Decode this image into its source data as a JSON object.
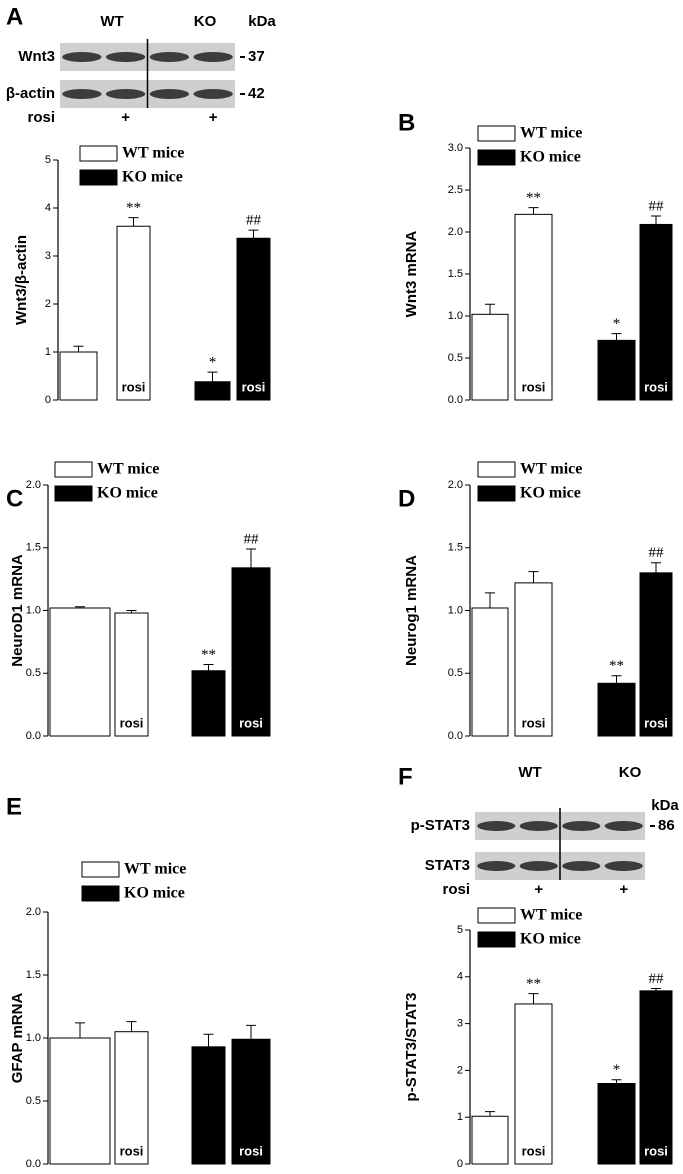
{
  "chart_data": [
    {
      "type": "bar",
      "panel": "A",
      "ylabel": "Wnt3/β-actin",
      "ylim": [
        0,
        5
      ],
      "yticks": [
        0,
        1,
        2,
        3,
        4,
        5
      ],
      "blot": {
        "groups": [
          "WT",
          "KO"
        ],
        "unit": "kDa",
        "rows": [
          {
            "name": "Wnt3",
            "kda": 37
          },
          {
            "name": "β-actin",
            "kda": 42
          }
        ],
        "treatment": "rosi",
        "marks": [
          null,
          "+",
          null,
          "+"
        ]
      },
      "series": [
        {
          "name": "WT mice",
          "color": "#ffffff",
          "values": [
            1.0,
            3.62
          ],
          "errors": [
            0.12,
            0.18
          ],
          "bar_labels": [
            null,
            "rosi"
          ],
          "annotations": [
            null,
            "**"
          ]
        },
        {
          "name": "KO mice",
          "color": "#000000",
          "values": [
            0.38,
            3.37
          ],
          "errors": [
            0.2,
            0.17
          ],
          "bar_labels": [
            null,
            "rosi"
          ],
          "annotations": [
            "*",
            "##"
          ]
        }
      ]
    },
    {
      "type": "bar",
      "panel": "B",
      "ylabel": "Wnt3 mRNA",
      "ylim": [
        0,
        3
      ],
      "yticks": [
        {
          "value": 0,
          "label": "0.0"
        },
        {
          "value": 0.5,
          "label": "0.5"
        },
        {
          "value": 1,
          "label": "1.0"
        },
        {
          "value": 1.5,
          "label": "1.5"
        },
        {
          "value": 2,
          "label": "2.0"
        },
        {
          "value": 2.5,
          "label": "2.5"
        },
        {
          "value": 3,
          "label": "3.0"
        }
      ],
      "series": [
        {
          "name": "WT mice",
          "color": "#ffffff",
          "values": [
            1.02,
            2.21
          ],
          "errors": [
            0.12,
            0.08
          ],
          "bar_labels": [
            null,
            "rosi"
          ],
          "annotations": [
            null,
            "**"
          ]
        },
        {
          "name": "KO mice",
          "color": "#000000",
          "values": [
            0.71,
            2.09
          ],
          "errors": [
            0.08,
            0.1
          ],
          "bar_labels": [
            null,
            "rosi"
          ],
          "annotations": [
            "*",
            "##"
          ]
        }
      ]
    },
    {
      "type": "bar",
      "panel": "C",
      "ylabel": "NeuroD1 mRNA",
      "ylim": [
        0,
        2
      ],
      "yticks": [
        {
          "value": 0,
          "label": "0.0"
        },
        {
          "value": 0.5,
          "label": "0.5"
        },
        {
          "value": 1,
          "label": "1.0"
        },
        {
          "value": 1.5,
          "label": "1.5"
        },
        {
          "value": 2,
          "label": "2.0"
        }
      ],
      "series": [
        {
          "name": "WT mice",
          "color": "#ffffff",
          "values": [
            1.02,
            0.98
          ],
          "errors": [
            0.01,
            0.02
          ],
          "bar_labels": [
            null,
            "rosi"
          ],
          "annotations": [
            null,
            null
          ]
        },
        {
          "name": "KO mice",
          "color": "#000000",
          "values": [
            0.52,
            1.34
          ],
          "errors": [
            0.05,
            0.15
          ],
          "bar_labels": [
            null,
            "rosi"
          ],
          "annotations": [
            "**",
            "##"
          ]
        }
      ]
    },
    {
      "type": "bar",
      "panel": "D",
      "ylabel": "Neurog1 mRNA",
      "ylim": [
        0,
        2
      ],
      "yticks": [
        {
          "value": 0,
          "label": "0.0"
        },
        {
          "value": 0.5,
          "label": "0.5"
        },
        {
          "value": 1,
          "label": "1.0"
        },
        {
          "value": 1.5,
          "label": "1.5"
        },
        {
          "value": 2,
          "label": "2.0"
        }
      ],
      "series": [
        {
          "name": "WT mice",
          "color": "#ffffff",
          "values": [
            1.02,
            1.22
          ],
          "errors": [
            0.12,
            0.09
          ],
          "bar_labels": [
            null,
            "rosi"
          ],
          "annotations": [
            null,
            null
          ]
        },
        {
          "name": "KO mice",
          "color": "#000000",
          "values": [
            0.42,
            1.3
          ],
          "errors": [
            0.06,
            0.08
          ],
          "bar_labels": [
            null,
            "rosi"
          ],
          "annotations": [
            "**",
            "##"
          ]
        }
      ]
    },
    {
      "type": "bar",
      "panel": "E",
      "ylabel": "GFAP mRNA",
      "ylim": [
        0,
        2
      ],
      "yticks": [
        {
          "value": 0,
          "label": "0.0"
        },
        {
          "value": 0.5,
          "label": "0.5"
        },
        {
          "value": 1,
          "label": "1.0"
        },
        {
          "value": 1.5,
          "label": "1.5"
        },
        {
          "value": 2,
          "label": "2.0"
        }
      ],
      "series": [
        {
          "name": "WT mice",
          "color": "#ffffff",
          "values": [
            1.0,
            1.05
          ],
          "errors": [
            0.12,
            0.08
          ],
          "bar_labels": [
            null,
            "rosi"
          ],
          "annotations": [
            null,
            null
          ]
        },
        {
          "name": "KO mice",
          "color": "#000000",
          "values": [
            0.93,
            0.99
          ],
          "errors": [
            0.1,
            0.11
          ],
          "bar_labels": [
            null,
            "rosi"
          ],
          "annotations": [
            null,
            null
          ]
        }
      ]
    },
    {
      "type": "bar",
      "panel": "F",
      "ylabel": "p-STAT3/STAT3",
      "ylim": [
        0,
        5
      ],
      "yticks": [
        0,
        1,
        2,
        3,
        4,
        5
      ],
      "blot": {
        "groups": [
          "WT",
          "KO"
        ],
        "unit": "kDa",
        "rows": [
          {
            "name": "p-STAT3",
            "kda": 86
          },
          {
            "name": "STAT3"
          }
        ],
        "treatment": "rosi",
        "marks": [
          null,
          "+",
          null,
          "+"
        ]
      },
      "series": [
        {
          "name": "WT mice",
          "color": "#ffffff",
          "values": [
            1.02,
            3.42
          ],
          "errors": [
            0.1,
            0.22
          ],
          "bar_labels": [
            null,
            "rosi"
          ],
          "annotations": [
            null,
            "**"
          ]
        },
        {
          "name": "KO mice",
          "color": "#000000",
          "values": [
            1.72,
            3.7
          ],
          "errors": [
            0.08,
            0.05
          ],
          "bar_labels": [
            null,
            "rosi"
          ],
          "annotations": [
            "*",
            "##"
          ]
        }
      ]
    }
  ]
}
